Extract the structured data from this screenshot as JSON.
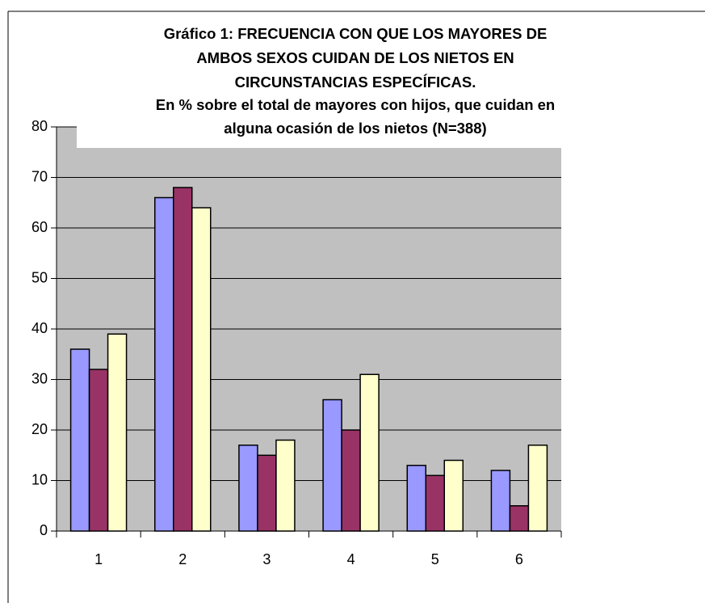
{
  "chart_data": {
    "type": "bar",
    "title": [
      "Gráfico 1: FRECUENCIA CON QUE LOS MAYORES DE",
      "AMBOS SEXOS CUIDAN DE LOS NIETOS EN",
      "CIRCUNSTANCIAS ESPECÍFICAS."
    ],
    "subtitle": [
      "En % sobre el total de mayores con hijos, que cuidan en",
      "alguna ocasión de los nietos (N=388)"
    ],
    "categories": [
      "1",
      "2",
      "3",
      "4",
      "5",
      "6"
    ],
    "series": [
      {
        "color": "#9999ff",
        "values": [
          36,
          66,
          17,
          26,
          13,
          12
        ]
      },
      {
        "color": "#993366",
        "values": [
          32,
          68,
          15,
          20,
          11,
          5
        ]
      },
      {
        "color": "#ffffcc",
        "values": [
          39,
          64,
          18,
          31,
          14,
          17
        ]
      }
    ],
    "ylim": [
      0,
      80
    ],
    "yticks": [
      0,
      10,
      20,
      30,
      40,
      50,
      60,
      70,
      80
    ],
    "grid": true
  }
}
